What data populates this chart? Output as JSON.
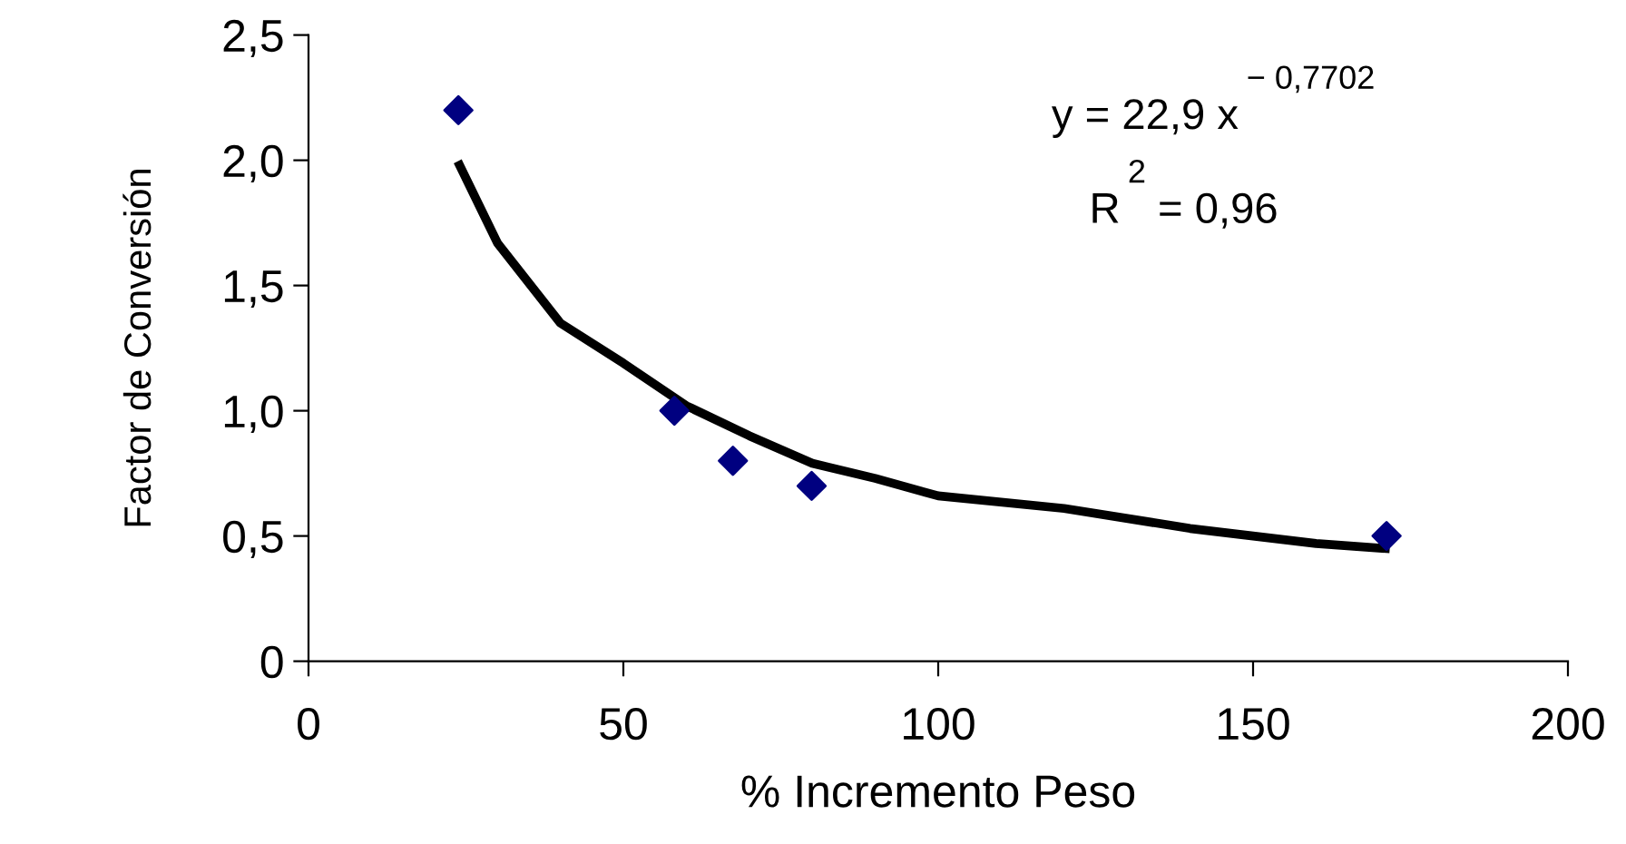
{
  "chart_data": {
    "type": "scatter",
    "xlabel": "% Incremento Peso",
    "ylabel": "Factor de Conversión",
    "series": [
      {
        "color": "#000080",
        "marker": "diamond",
        "x": [
          23.8,
          58.1,
          67.4,
          79.9,
          171.2
        ],
        "values": [
          2.2,
          1.0,
          0.8,
          0.7,
          0.5
        ]
      },
      {
        "type": "line",
        "color": "#000000",
        "marker": "none",
        "line_style": "solid",
        "x": [
          24,
          30,
          40,
          50,
          60,
          70,
          80,
          90,
          100,
          120,
          140,
          160,
          171
        ],
        "values": [
          1.98,
          1.67,
          1.35,
          1.19,
          1.02,
          0.9,
          0.79,
          0.73,
          0.66,
          0.61,
          0.53,
          0.47,
          0.45
        ]
      }
    ],
    "annotations": [
      "y = 22,9 x$^{− 0,7702}$",
      "R$^{2}$ = 0,96"
    ],
    "xlim": [
      0,
      200
    ],
    "xticks": [
      0,
      50,
      100,
      150,
      200
    ],
    "ylim": [
      0,
      2.5
    ],
    "yticks": [
      {
        "value": 0,
        "label": "0"
      },
      {
        "value": 0.5,
        "label": "0,5"
      },
      {
        "value": 1.0,
        "label": "1,0"
      },
      {
        "value": 1.5,
        "label": "1,5"
      },
      {
        "value": 2.0,
        "label": "2,0"
      },
      {
        "value": 2.5,
        "label": "2,5"
      }
    ],
    "grid": false,
    "legend": false
  }
}
